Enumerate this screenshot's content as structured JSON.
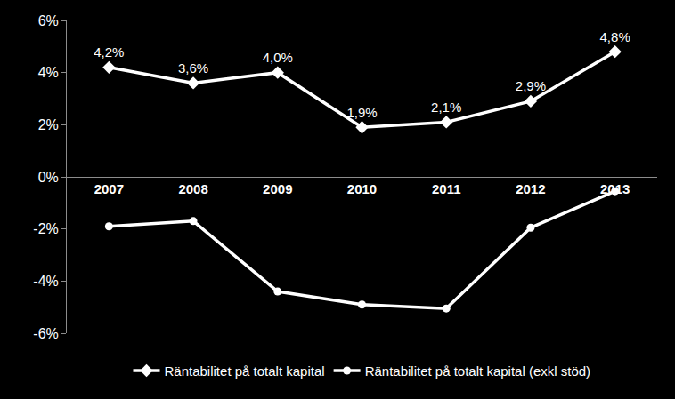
{
  "chart_data": {
    "type": "line",
    "categories": [
      "2007",
      "2008",
      "2009",
      "2010",
      "2011",
      "2012",
      "2013"
    ],
    "series": [
      {
        "name": "Räntabilitet på totalt kapital",
        "color": "#ffffff",
        "marker": "diamond",
        "values": [
          4.2,
          3.6,
          4.0,
          1.9,
          2.1,
          2.9,
          4.8
        ],
        "data_labels": true,
        "value_labels": [
          "4,2%",
          "3,6%",
          "4,0%",
          "1,9%",
          "2,1%",
          "2,9%",
          "4,8%"
        ]
      },
      {
        "name": "Räntabilitet på totalt kapital (exkl stöd)",
        "color": "#ffffff",
        "marker": "circle",
        "values": [
          -1.9,
          -1.7,
          -4.4,
          -4.9,
          -5.05,
          -1.95,
          -0.55
        ],
        "data_labels": false
      }
    ],
    "ylim": [
      -6,
      6
    ],
    "yticks": [
      {
        "value": -6,
        "label": "-6%"
      },
      {
        "value": -4,
        "label": "-4%"
      },
      {
        "value": -2,
        "label": "-2%"
      },
      {
        "value": 0,
        "label": "0%"
      },
      {
        "value": 2,
        "label": "2%"
      },
      {
        "value": 4,
        "label": "4%"
      },
      {
        "value": 6,
        "label": "6%"
      }
    ],
    "grid": false,
    "legend": "bottom"
  }
}
